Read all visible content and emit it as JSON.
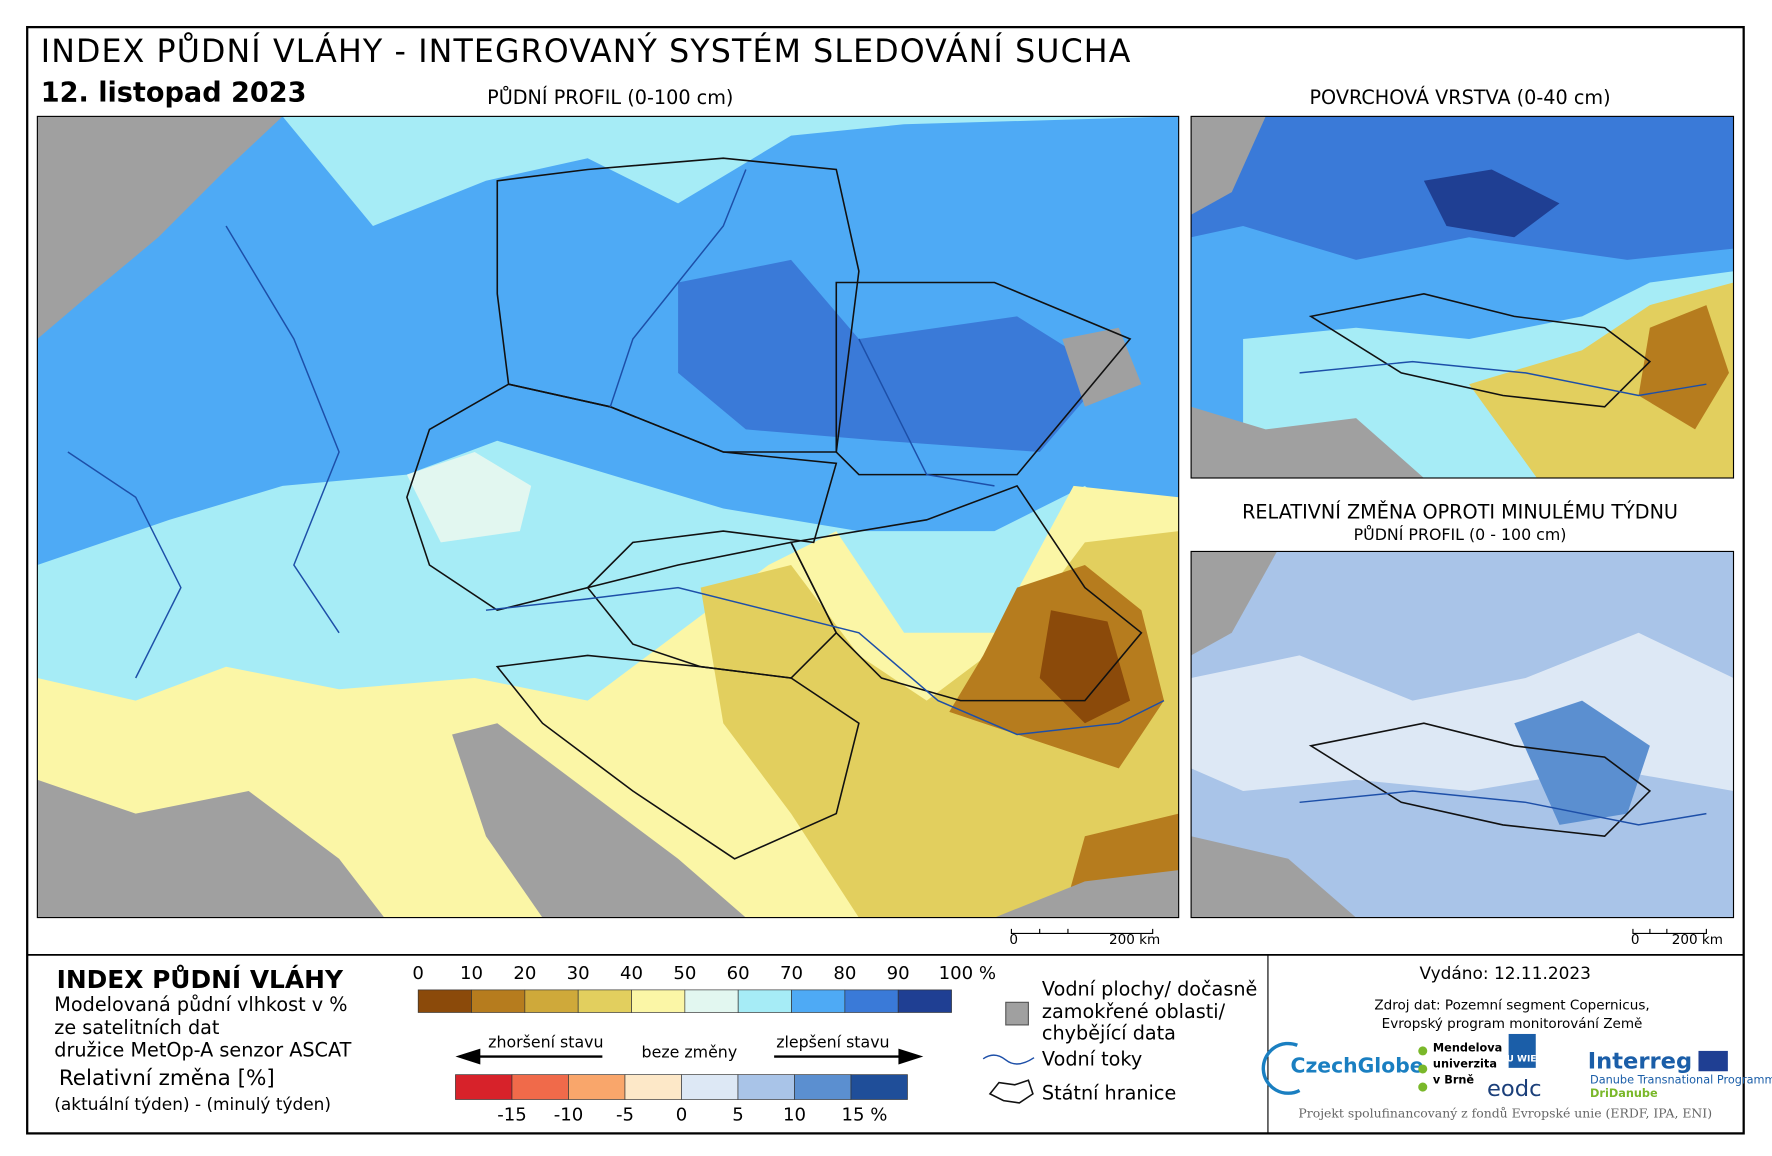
{
  "header": {
    "title": "INDEX PŮDNÍ VLÁHY - INTEGROVANÝ SYSTÉM SLEDOVÁNÍ SUCHA",
    "date": "12. listopad 2023"
  },
  "maps": [
    {
      "title": "PŮDNÍ PROFIL (0-100 cm)",
      "scale": {
        "start": "0",
        "end": "200 km"
      }
    },
    {
      "title": "POVRCHOVÁ VRSTVA (0-40 cm)"
    },
    {
      "title": "RELATIVNÍ ZMĚNA OPROTI MINULÉMU TÝDNU",
      "subtitle": "PŮDNÍ PROFIL (0 - 100 cm)",
      "scale": {
        "start": "0",
        "end": "200 km"
      }
    }
  ],
  "legend": {
    "title": "INDEX PŮDNÍ VLÁHY",
    "description": [
      "Modelovaná půdní vlhkost v %",
      "ze satelitních dat",
      "družice MetOp-A senzor ASCAT"
    ],
    "change_title": "Relativní změna [%]",
    "change_description": "(aktuální týden) - (minulý týden)",
    "moisture": {
      "labels": [
        "0",
        "10",
        "20",
        "30",
        "40",
        "50",
        "60",
        "70",
        "80",
        "90",
        "100 %"
      ],
      "colors": [
        "#8b4a0a",
        "#b67c1e",
        "#cfa93a",
        "#e2cf5e",
        "#fbf6a6",
        "#e2f7f0",
        "#a6ecf6",
        "#4eaaf5",
        "#3a7ad8",
        "#1f3f93"
      ]
    },
    "change": {
      "labels": [
        "-15",
        "-10",
        "-5",
        "0",
        "5",
        "10",
        "15 %"
      ],
      "colors": [
        "#d7222a",
        "#f06a4a",
        "#f9a66b",
        "#fde8c8",
        "#dde8f5",
        "#a9c4e8",
        "#5b8fd0",
        "#1f4e99"
      ],
      "worse": "zhoršení stavu",
      "none": "beze změny",
      "better": "zlepšení stavu"
    },
    "symbols": {
      "nodata": [
        "Vodní plochy/ dočasně",
        "zamokřené oblasti/",
        "chybějící data"
      ],
      "rivers": "Vodní toky",
      "borders": "Státní hranice"
    }
  },
  "footer": {
    "issued": "Vydáno: 12.11.2023",
    "source": [
      "Zdroj dat: Pozemní segment Copernicus,",
      "Evropský program monitorování Země"
    ],
    "logos": {
      "czechglobe": "CzechGlobe",
      "mendelu": [
        "Mendelova",
        "univerzita",
        "v Brně"
      ],
      "tuwien": "TU WIEN",
      "eodc": "eodc",
      "interreg": "Interreg",
      "programme": "Danube Transnational Programme",
      "project": "DriDanube"
    },
    "funding": "Projekt spolufinancovaný z fondů Evropské unie (ERDF, IPA, ENI)"
  }
}
